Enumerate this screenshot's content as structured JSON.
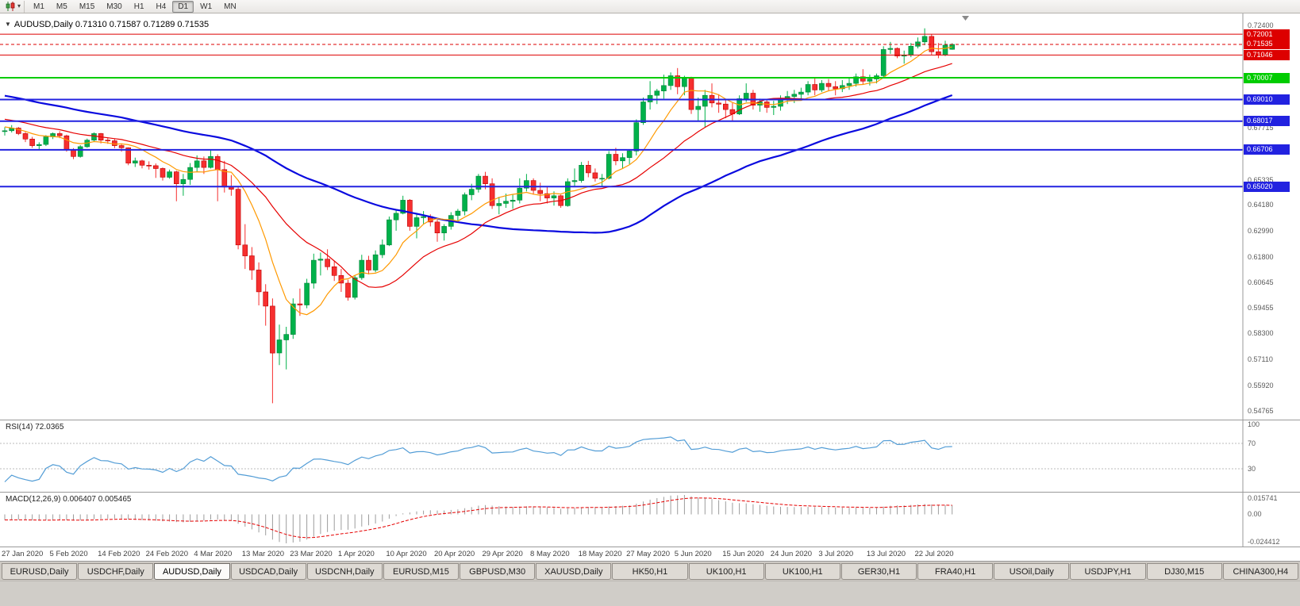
{
  "icons": {
    "caret_down": "▾",
    "collapse_triangle": "▼"
  },
  "toolbar": {
    "timeframes": [
      "M1",
      "M5",
      "M15",
      "M30",
      "H1",
      "H4",
      "D1",
      "W1",
      "MN"
    ],
    "active_timeframe": "D1"
  },
  "chart": {
    "title": "AUDUSD,Daily 0.71310 0.71587 0.71289 0.71535"
  },
  "indicators": {
    "rsi_label": "RSI(14) 72.0365",
    "rsi_axis": [
      "100",
      "70",
      "30"
    ],
    "macd_label": "MACD(12,26,9) 0.006407 0.005465",
    "macd_axis_top": "0.015741",
    "macd_axis_zero": "0.00",
    "macd_axis_bottom": "-0.024412"
  },
  "tabs": {
    "items": [
      "EURUSD,Daily",
      "USDCHF,Daily",
      "AUDUSD,Daily",
      "USDCAD,Daily",
      "USDCNH,Daily",
      "EURUSD,M15",
      "GBPUSD,M30",
      "XAUUSD,Daily",
      "HK50,H1",
      "UK100,H1",
      "UK100,H1",
      "GER30,H1",
      "FRA40,H1",
      "USOil,Daily",
      "USDJPY,H1",
      "DJ30,M15",
      "CHINA300,H4"
    ],
    "active_index": 2
  },
  "chart_data": {
    "type": "candlestick",
    "symbol": "AUDUSD",
    "timeframe": "Daily",
    "ohlc_current": {
      "open": 0.7131,
      "high": 0.71587,
      "low": 0.71289,
      "close": 0.71535
    },
    "y_min": 0.5435,
    "y_max": 0.7295,
    "axis_ticks": [
      {
        "v": 0.724,
        "t": "0.72400"
      },
      {
        "v": 0.67715,
        "t": "0.67715"
      },
      {
        "v": 0.65335,
        "t": "0.65335"
      },
      {
        "v": 0.6418,
        "t": "0.64180"
      },
      {
        "v": 0.6299,
        "t": "0.62990"
      },
      {
        "v": 0.618,
        "t": "0.61800"
      },
      {
        "v": 0.60645,
        "t": "0.60645"
      },
      {
        "v": 0.59455,
        "t": "0.59455"
      },
      {
        "v": 0.583,
        "t": "0.58300"
      },
      {
        "v": 0.5711,
        "t": "0.57110"
      },
      {
        "v": 0.5592,
        "t": "0.55920"
      },
      {
        "v": 0.54765,
        "t": "0.54765"
      }
    ],
    "x_label_indices": [
      0,
      7,
      14,
      21,
      28,
      35,
      42,
      49,
      56,
      63,
      70,
      77,
      84,
      91,
      98,
      105,
      112,
      119,
      126,
      133
    ],
    "x_labels": [
      "27 Jan 2020",
      "5 Feb 2020",
      "14 Feb 2020",
      "24 Feb 2020",
      "4 Mar 2020",
      "13 Mar 2020",
      "23 Mar 2020",
      "1 Apr 2020",
      "10 Apr 2020",
      "20 Apr 2020",
      "29 Apr 2020",
      "8 May 2020",
      "18 May 2020",
      "27 May 2020",
      "5 Jun 2020",
      "15 Jun 2020",
      "24 Jun 2020",
      "3 Jul 2020",
      "13 Jul 2020",
      "22 Jul 2020"
    ],
    "levels": [
      {
        "price": 0.72001,
        "label": "0.72001",
        "color": "#dd0000",
        "width": 1
      },
      {
        "price": 0.71046,
        "label": "0.71046",
        "color": "#dd0000",
        "width": 1
      },
      {
        "price": 0.70007,
        "label": "0.70007",
        "color": "#00cc00",
        "width": 2
      },
      {
        "price": 0.6901,
        "label": "0.69010",
        "color": "#2222e0",
        "width": 2
      },
      {
        "price": 0.68017,
        "label": "0.68017",
        "color": "#2222e0",
        "width": 2
      },
      {
        "price": 0.66706,
        "label": "0.66706",
        "color": "#2222e0",
        "width": 2
      },
      {
        "price": 0.6502,
        "label": "0.65020",
        "color": "#2222e0",
        "width": 2
      }
    ],
    "bid_marker": {
      "price": 0.71535,
      "label": "0.71535",
      "color": "#dd0000"
    },
    "ma": [
      {
        "type": "sma",
        "period": 55,
        "color": "#0a0adf",
        "width": 2.2
      },
      {
        "type": "sma",
        "period": 20,
        "color": "#e60000",
        "width": 1.2
      },
      {
        "type": "sma",
        "period": 8,
        "color": "#ff9900",
        "width": 1.2
      }
    ],
    "warmup": {
      "count": 60,
      "start": 0.712,
      "end": 0.676
    },
    "rsi": {
      "period": 14,
      "color": "#539dd6",
      "levels": [
        70,
        30
      ]
    },
    "macd": {
      "fast": 12,
      "slow": 26,
      "signal": 9,
      "hist_color": "#9c9c9c",
      "signal_color": "#e60000"
    },
    "style": {
      "bull": "#00b14a",
      "bull_stroke": "#00843a",
      "bear": "#f62f2f",
      "bear_stroke": "#bd0000",
      "bg": "#ffffff"
    },
    "candles": [
      [
        0.6754,
        0.6774,
        0.6736,
        0.6758
      ],
      [
        0.6758,
        0.6784,
        0.675,
        0.677
      ],
      [
        0.677,
        0.6775,
        0.6738,
        0.6745
      ],
      [
        0.6745,
        0.6752,
        0.6706,
        0.672
      ],
      [
        0.672,
        0.673,
        0.668,
        0.669
      ],
      [
        0.669,
        0.6705,
        0.667,
        0.6695
      ],
      [
        0.6695,
        0.6738,
        0.6688,
        0.673
      ],
      [
        0.673,
        0.675,
        0.672,
        0.6745
      ],
      [
        0.6745,
        0.6756,
        0.6724,
        0.6735
      ],
      [
        0.6735,
        0.674,
        0.6662,
        0.667
      ],
      [
        0.667,
        0.6678,
        0.6628,
        0.664
      ],
      [
        0.664,
        0.6692,
        0.6635,
        0.6685
      ],
      [
        0.6685,
        0.6722,
        0.668,
        0.6715
      ],
      [
        0.6715,
        0.675,
        0.6708,
        0.6745
      ],
      [
        0.6745,
        0.6748,
        0.67,
        0.6715
      ],
      [
        0.6715,
        0.6725,
        0.6698,
        0.6712
      ],
      [
        0.6712,
        0.672,
        0.6678,
        0.669
      ],
      [
        0.669,
        0.67,
        0.6662,
        0.668
      ],
      [
        0.668,
        0.6682,
        0.66,
        0.661
      ],
      [
        0.661,
        0.6635,
        0.6592,
        0.662
      ],
      [
        0.662,
        0.6625,
        0.6586,
        0.66
      ],
      [
        0.66,
        0.6618,
        0.658,
        0.6598
      ],
      [
        0.6598,
        0.6608,
        0.6542,
        0.6585
      ],
      [
        0.6585,
        0.659,
        0.653,
        0.6545
      ],
      [
        0.6545,
        0.658,
        0.6538,
        0.657
      ],
      [
        0.657,
        0.6575,
        0.6435,
        0.6515
      ],
      [
        0.6515,
        0.656,
        0.646,
        0.6535
      ],
      [
        0.6535,
        0.661,
        0.651,
        0.659
      ],
      [
        0.659,
        0.6645,
        0.657,
        0.662
      ],
      [
        0.662,
        0.664,
        0.656,
        0.659
      ],
      [
        0.659,
        0.667,
        0.6585,
        0.664
      ],
      [
        0.664,
        0.665,
        0.6435,
        0.658
      ],
      [
        0.658,
        0.662,
        0.6475,
        0.65
      ],
      [
        0.65,
        0.6555,
        0.646,
        0.649
      ],
      [
        0.649,
        0.65,
        0.6215,
        0.6235
      ],
      [
        0.6235,
        0.633,
        0.6125,
        0.6185
      ],
      [
        0.6185,
        0.6225,
        0.6075,
        0.612
      ],
      [
        0.612,
        0.6155,
        0.5958,
        0.602
      ],
      [
        0.602,
        0.6055,
        0.5865,
        0.5955
      ],
      [
        0.5955,
        0.599,
        0.551,
        0.574
      ],
      [
        0.574,
        0.587,
        0.5685,
        0.58
      ],
      [
        0.58,
        0.586,
        0.5665,
        0.5825
      ],
      [
        0.5825,
        0.599,
        0.5805,
        0.5965
      ],
      [
        0.5965,
        0.6035,
        0.591,
        0.596
      ],
      [
        0.596,
        0.608,
        0.5945,
        0.606
      ],
      [
        0.606,
        0.6195,
        0.6035,
        0.6165
      ],
      [
        0.6165,
        0.62,
        0.6095,
        0.617
      ],
      [
        0.617,
        0.6215,
        0.612,
        0.6135
      ],
      [
        0.6135,
        0.616,
        0.607,
        0.6095
      ],
      [
        0.6095,
        0.6125,
        0.602,
        0.606
      ],
      [
        0.606,
        0.6075,
        0.598,
        0.5995
      ],
      [
        0.5995,
        0.6095,
        0.5985,
        0.6085
      ],
      [
        0.6085,
        0.619,
        0.6075,
        0.6165
      ],
      [
        0.6165,
        0.6185,
        0.61,
        0.612
      ],
      [
        0.612,
        0.621,
        0.611,
        0.619
      ],
      [
        0.619,
        0.626,
        0.6175,
        0.6235
      ],
      [
        0.6235,
        0.6365,
        0.623,
        0.635
      ],
      [
        0.635,
        0.6395,
        0.63,
        0.638
      ],
      [
        0.638,
        0.646,
        0.6375,
        0.644
      ],
      [
        0.644,
        0.6445,
        0.63,
        0.632
      ],
      [
        0.632,
        0.638,
        0.6265,
        0.636
      ],
      [
        0.636,
        0.639,
        0.633,
        0.6365
      ],
      [
        0.6365,
        0.6375,
        0.632,
        0.634
      ],
      [
        0.634,
        0.635,
        0.625,
        0.629
      ],
      [
        0.629,
        0.633,
        0.6255,
        0.632
      ],
      [
        0.632,
        0.6385,
        0.6305,
        0.637
      ],
      [
        0.637,
        0.64,
        0.634,
        0.639
      ],
      [
        0.639,
        0.6475,
        0.637,
        0.6465
      ],
      [
        0.6465,
        0.6515,
        0.644,
        0.649
      ],
      [
        0.649,
        0.656,
        0.6475,
        0.655
      ],
      [
        0.655,
        0.657,
        0.649,
        0.6515
      ],
      [
        0.6515,
        0.654,
        0.64,
        0.6415
      ],
      [
        0.6415,
        0.6455,
        0.6375,
        0.6425
      ],
      [
        0.6425,
        0.647,
        0.6405,
        0.6435
      ],
      [
        0.6435,
        0.6465,
        0.64,
        0.644
      ],
      [
        0.644,
        0.654,
        0.6425,
        0.6495
      ],
      [
        0.6495,
        0.656,
        0.648,
        0.653
      ],
      [
        0.653,
        0.654,
        0.6465,
        0.6485
      ],
      [
        0.6485,
        0.652,
        0.6435,
        0.647
      ],
      [
        0.647,
        0.6505,
        0.6425,
        0.645
      ],
      [
        0.645,
        0.648,
        0.6415,
        0.646
      ],
      [
        0.646,
        0.6465,
        0.6405,
        0.6415
      ],
      [
        0.6415,
        0.654,
        0.641,
        0.6525
      ],
      [
        0.6525,
        0.6585,
        0.6505,
        0.653
      ],
      [
        0.653,
        0.6615,
        0.652,
        0.66
      ],
      [
        0.66,
        0.662,
        0.6545,
        0.6565
      ],
      [
        0.6565,
        0.6585,
        0.6525,
        0.654
      ],
      [
        0.654,
        0.656,
        0.6505,
        0.654
      ],
      [
        0.654,
        0.6665,
        0.6535,
        0.665
      ],
      [
        0.665,
        0.668,
        0.66,
        0.662
      ],
      [
        0.662,
        0.6655,
        0.6585,
        0.6635
      ],
      [
        0.6635,
        0.667,
        0.6605,
        0.6665
      ],
      [
        0.6665,
        0.681,
        0.6645,
        0.6795
      ],
      [
        0.6795,
        0.691,
        0.6785,
        0.689
      ],
      [
        0.689,
        0.6985,
        0.6855,
        0.692
      ],
      [
        0.692,
        0.695,
        0.688,
        0.694
      ],
      [
        0.694,
        0.7015,
        0.6905,
        0.6965
      ],
      [
        0.6965,
        0.7025,
        0.6945,
        0.701
      ],
      [
        0.701,
        0.7045,
        0.6925,
        0.696
      ],
      [
        0.696,
        0.701,
        0.692,
        0.7
      ],
      [
        0.7,
        0.7005,
        0.6835,
        0.6855
      ],
      [
        0.6855,
        0.691,
        0.68,
        0.687
      ],
      [
        0.687,
        0.6945,
        0.6775,
        0.692
      ],
      [
        0.692,
        0.6975,
        0.6865,
        0.6885
      ],
      [
        0.6885,
        0.6925,
        0.684,
        0.688
      ],
      [
        0.688,
        0.6905,
        0.6815,
        0.6855
      ],
      [
        0.6855,
        0.6885,
        0.68,
        0.6835
      ],
      [
        0.6835,
        0.692,
        0.683,
        0.6905
      ],
      [
        0.6905,
        0.6975,
        0.689,
        0.693
      ],
      [
        0.693,
        0.6945,
        0.6855,
        0.6875
      ],
      [
        0.6875,
        0.6905,
        0.6845,
        0.689
      ],
      [
        0.689,
        0.69,
        0.684,
        0.6865
      ],
      [
        0.6865,
        0.6895,
        0.683,
        0.687
      ],
      [
        0.687,
        0.692,
        0.685,
        0.69
      ],
      [
        0.69,
        0.694,
        0.688,
        0.6915
      ],
      [
        0.6915,
        0.6945,
        0.6885,
        0.6925
      ],
      [
        0.6925,
        0.6955,
        0.69,
        0.6935
      ],
      [
        0.6935,
        0.6985,
        0.692,
        0.697
      ],
      [
        0.697,
        0.6998,
        0.692,
        0.6945
      ],
      [
        0.6945,
        0.699,
        0.6935,
        0.6975
      ],
      [
        0.6975,
        0.6995,
        0.694,
        0.696
      ],
      [
        0.696,
        0.6985,
        0.692,
        0.695
      ],
      [
        0.695,
        0.699,
        0.6935,
        0.6965
      ],
      [
        0.6965,
        0.7,
        0.6945,
        0.6975
      ],
      [
        0.6975,
        0.702,
        0.696,
        0.7005
      ],
      [
        0.7005,
        0.704,
        0.697,
        0.6985
      ],
      [
        0.6985,
        0.7015,
        0.6965,
        0.6995
      ],
      [
        0.6995,
        0.702,
        0.6975,
        0.701
      ],
      [
        0.701,
        0.7145,
        0.7,
        0.713
      ],
      [
        0.713,
        0.7165,
        0.711,
        0.7135
      ],
      [
        0.7135,
        0.714,
        0.709,
        0.71
      ],
      [
        0.71,
        0.7125,
        0.7065,
        0.7105
      ],
      [
        0.7105,
        0.716,
        0.7095,
        0.7145
      ],
      [
        0.7145,
        0.7185,
        0.7135,
        0.7165
      ],
      [
        0.7165,
        0.7227,
        0.715,
        0.719
      ],
      [
        0.719,
        0.72,
        0.7105,
        0.712
      ],
      [
        0.712,
        0.716,
        0.709,
        0.7105
      ],
      [
        0.7105,
        0.717,
        0.71,
        0.715
      ],
      [
        0.7131,
        0.71587,
        0.71289,
        0.71535
      ]
    ]
  }
}
